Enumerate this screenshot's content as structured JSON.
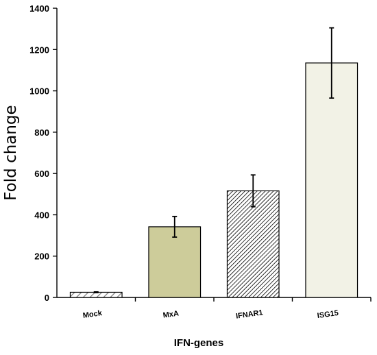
{
  "chart_data": {
    "type": "bar",
    "title": "",
    "xlabel": "IFN-genes",
    "ylabel": "Fold change",
    "ylim": [
      0,
      1400
    ],
    "yticks": [
      "0",
      "200",
      "400",
      "600",
      "800",
      "1000",
      "1200",
      "1400"
    ],
    "categories": [
      "Mock",
      "MxA",
      "IFNAR1",
      "ISG15"
    ],
    "values": [
      25,
      342,
      516,
      1135
    ],
    "errors": [
      2,
      50,
      77,
      170
    ],
    "bar_fills": [
      "light-diagonal-hatch",
      "#cdcc9a",
      "dense-diagonal-hatch",
      "#f2f2e6"
    ],
    "grid": false,
    "legend": "none"
  }
}
